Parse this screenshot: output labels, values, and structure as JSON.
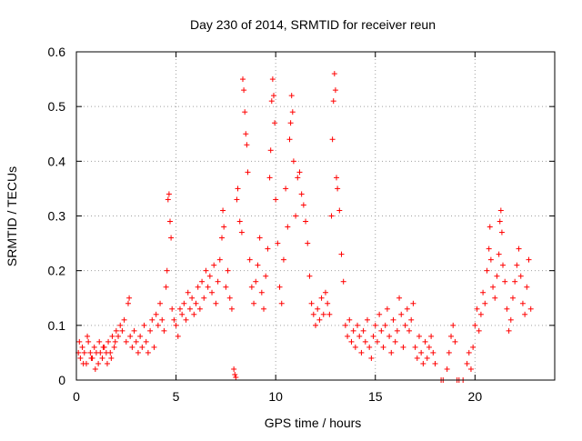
{
  "chart_data": {
    "type": "scatter",
    "title": "Day 230 of 2014, SRMTID for receiver reun",
    "xlabel": "GPS time / hours",
    "ylabel": "SRMTID / TECUs",
    "xlim": [
      0,
      24
    ],
    "ylim": [
      0,
      0.6
    ],
    "xticks": [
      0,
      5,
      10,
      15,
      20
    ],
    "xtick_labels": [
      "0",
      "5",
      "10",
      "15",
      "20"
    ],
    "yticks": [
      0,
      0.1,
      0.2,
      0.3,
      0.4,
      0.5,
      0.6
    ],
    "ytick_labels": [
      "0",
      "0.1",
      "0.2",
      "0.3",
      "0.4",
      "0.5",
      "0.6"
    ],
    "grid": true,
    "marker": "+",
    "color": "#ff0000",
    "series": [
      {
        "name": "SRMTID",
        "points": [
          [
            0.1,
            0.05
          ],
          [
            0.2,
            0.04
          ],
          [
            0.3,
            0.06
          ],
          [
            0.4,
            0.05
          ],
          [
            0.5,
            0.03
          ],
          [
            0.6,
            0.07
          ],
          [
            0.7,
            0.05
          ],
          [
            0.8,
            0.04
          ],
          [
            0.9,
            0.06
          ],
          [
            1.0,
            0.05
          ],
          [
            1.1,
            0.03
          ],
          [
            1.2,
            0.05
          ],
          [
            1.3,
            0.04
          ],
          [
            1.4,
            0.06
          ],
          [
            1.5,
            0.05
          ],
          [
            1.6,
            0.07
          ],
          [
            1.7,
            0.05
          ],
          [
            1.8,
            0.08
          ],
          [
            1.9,
            0.06
          ],
          [
            2.0,
            0.09
          ],
          [
            0.15,
            0.07
          ],
          [
            0.35,
            0.03
          ],
          [
            0.55,
            0.08
          ],
          [
            0.75,
            0.04
          ],
          [
            0.95,
            0.02
          ],
          [
            1.15,
            0.07
          ],
          [
            1.35,
            0.06
          ],
          [
            1.55,
            0.03
          ],
          [
            1.75,
            0.04
          ],
          [
            1.95,
            0.07
          ],
          [
            2.1,
            0.08
          ],
          [
            2.2,
            0.1
          ],
          [
            2.3,
            0.09
          ],
          [
            2.4,
            0.11
          ],
          [
            2.5,
            0.07
          ],
          [
            2.6,
            0.14
          ],
          [
            2.65,
            0.15
          ],
          [
            2.7,
            0.08
          ],
          [
            2.8,
            0.06
          ],
          [
            2.9,
            0.09
          ],
          [
            3.0,
            0.07
          ],
          [
            3.1,
            0.05
          ],
          [
            3.2,
            0.08
          ],
          [
            3.3,
            0.06
          ],
          [
            3.4,
            0.1
          ],
          [
            3.5,
            0.07
          ],
          [
            3.6,
            0.05
          ],
          [
            3.7,
            0.09
          ],
          [
            3.8,
            0.11
          ],
          [
            3.9,
            0.06
          ],
          [
            4.0,
            0.12
          ],
          [
            4.1,
            0.1
          ],
          [
            4.2,
            0.14
          ],
          [
            4.3,
            0.11
          ],
          [
            4.4,
            0.09
          ],
          [
            4.5,
            0.17
          ],
          [
            4.55,
            0.2
          ],
          [
            4.6,
            0.33
          ],
          [
            4.65,
            0.34
          ],
          [
            4.7,
            0.29
          ],
          [
            4.75,
            0.26
          ],
          [
            4.8,
            0.13
          ],
          [
            4.9,
            0.11
          ],
          [
            5.0,
            0.1
          ],
          [
            5.1,
            0.08
          ],
          [
            5.2,
            0.13
          ],
          [
            5.3,
            0.12
          ],
          [
            5.4,
            0.14
          ],
          [
            5.5,
            0.11
          ],
          [
            5.6,
            0.16
          ],
          [
            5.7,
            0.13
          ],
          [
            5.8,
            0.15
          ],
          [
            5.9,
            0.12
          ],
          [
            6.0,
            0.14
          ],
          [
            6.1,
            0.17
          ],
          [
            6.2,
            0.13
          ],
          [
            6.3,
            0.18
          ],
          [
            6.4,
            0.15
          ],
          [
            6.5,
            0.2
          ],
          [
            6.6,
            0.17
          ],
          [
            6.7,
            0.19
          ],
          [
            6.8,
            0.16
          ],
          [
            6.9,
            0.21
          ],
          [
            7.0,
            0.14
          ],
          [
            7.1,
            0.18
          ],
          [
            7.2,
            0.22
          ],
          [
            7.3,
            0.26
          ],
          [
            7.35,
            0.31
          ],
          [
            7.4,
            0.28
          ],
          [
            7.5,
            0.17
          ],
          [
            7.6,
            0.2
          ],
          [
            7.7,
            0.15
          ],
          [
            7.8,
            0.13
          ],
          [
            7.9,
            0.02
          ],
          [
            7.95,
            0.01
          ],
          [
            8.0,
            0.005
          ],
          [
            8.05,
            0.33
          ],
          [
            8.1,
            0.35
          ],
          [
            8.2,
            0.29
          ],
          [
            8.3,
            0.27
          ],
          [
            8.35,
            0.55
          ],
          [
            8.4,
            0.53
          ],
          [
            8.45,
            0.49
          ],
          [
            8.5,
            0.45
          ],
          [
            8.55,
            0.43
          ],
          [
            8.6,
            0.38
          ],
          [
            8.7,
            0.22
          ],
          [
            8.8,
            0.17
          ],
          [
            8.9,
            0.14
          ],
          [
            9.0,
            0.18
          ],
          [
            9.1,
            0.21
          ],
          [
            9.2,
            0.26
          ],
          [
            9.3,
            0.16
          ],
          [
            9.4,
            0.13
          ],
          [
            9.5,
            0.19
          ],
          [
            9.6,
            0.24
          ],
          [
            9.7,
            0.37
          ],
          [
            9.75,
            0.42
          ],
          [
            9.8,
            0.51
          ],
          [
            9.85,
            0.55
          ],
          [
            9.9,
            0.52
          ],
          [
            9.95,
            0.47
          ],
          [
            10.0,
            0.33
          ],
          [
            10.1,
            0.25
          ],
          [
            10.2,
            0.17
          ],
          [
            10.3,
            0.14
          ],
          [
            10.4,
            0.22
          ],
          [
            10.5,
            0.35
          ],
          [
            10.6,
            0.28
          ],
          [
            10.7,
            0.44
          ],
          [
            10.75,
            0.47
          ],
          [
            10.8,
            0.52
          ],
          [
            10.85,
            0.49
          ],
          [
            10.9,
            0.4
          ],
          [
            11.0,
            0.3
          ],
          [
            11.1,
            0.37
          ],
          [
            11.2,
            0.38
          ],
          [
            11.3,
            0.34
          ],
          [
            11.4,
            0.32
          ],
          [
            11.5,
            0.29
          ],
          [
            11.6,
            0.25
          ],
          [
            11.7,
            0.19
          ],
          [
            11.8,
            0.14
          ],
          [
            11.9,
            0.12
          ],
          [
            12.0,
            0.1
          ],
          [
            12.1,
            0.13
          ],
          [
            12.2,
            0.11
          ],
          [
            12.3,
            0.15
          ],
          [
            12.4,
            0.12
          ],
          [
            12.5,
            0.16
          ],
          [
            12.6,
            0.14
          ],
          [
            12.7,
            0.12
          ],
          [
            12.8,
            0.3
          ],
          [
            12.85,
            0.44
          ],
          [
            12.9,
            0.51
          ],
          [
            12.95,
            0.56
          ],
          [
            13.0,
            0.53
          ],
          [
            13.05,
            0.37
          ],
          [
            13.1,
            0.35
          ],
          [
            13.2,
            0.31
          ],
          [
            13.3,
            0.23
          ],
          [
            13.4,
            0.18
          ],
          [
            13.5,
            0.1
          ],
          [
            13.6,
            0.08
          ],
          [
            13.7,
            0.11
          ],
          [
            13.8,
            0.07
          ],
          [
            13.9,
            0.09
          ],
          [
            14.0,
            0.06
          ],
          [
            14.1,
            0.1
          ],
          [
            14.2,
            0.08
          ],
          [
            14.3,
            0.05
          ],
          [
            14.4,
            0.09
          ],
          [
            14.5,
            0.07
          ],
          [
            14.6,
            0.11
          ],
          [
            14.7,
            0.06
          ],
          [
            14.8,
            0.04
          ],
          [
            14.9,
            0.08
          ],
          [
            15.0,
            0.1
          ],
          [
            15.1,
            0.07
          ],
          [
            15.2,
            0.12
          ],
          [
            15.3,
            0.09
          ],
          [
            15.4,
            0.06
          ],
          [
            15.5,
            0.1
          ],
          [
            15.6,
            0.13
          ],
          [
            15.7,
            0.08
          ],
          [
            15.8,
            0.05
          ],
          [
            15.9,
            0.11
          ],
          [
            16.0,
            0.07
          ],
          [
            16.1,
            0.09
          ],
          [
            16.2,
            0.15
          ],
          [
            16.3,
            0.12
          ],
          [
            16.4,
            0.06
          ],
          [
            16.5,
            0.1
          ],
          [
            16.6,
            0.13
          ],
          [
            16.7,
            0.09
          ],
          [
            16.8,
            0.11
          ],
          [
            16.9,
            0.14
          ],
          [
            17.0,
            0.06
          ],
          [
            17.1,
            0.04
          ],
          [
            17.2,
            0.08
          ],
          [
            17.3,
            0.05
          ],
          [
            17.4,
            0.03
          ],
          [
            17.5,
            0.07
          ],
          [
            17.6,
            0.04
          ],
          [
            17.7,
            0.06
          ],
          [
            17.8,
            0.08
          ],
          [
            17.9,
            0.05
          ],
          [
            18.0,
            0.03
          ],
          [
            18.3,
            0.0
          ],
          [
            18.4,
            0.0
          ],
          [
            18.6,
            0.02
          ],
          [
            18.7,
            0.05
          ],
          [
            18.8,
            0.08
          ],
          [
            18.9,
            0.1
          ],
          [
            19.0,
            0.07
          ],
          [
            19.1,
            0.0
          ],
          [
            19.2,
            0.0
          ],
          [
            19.4,
            0.0
          ],
          [
            19.6,
            0.03
          ],
          [
            19.7,
            0.05
          ],
          [
            19.8,
            0.02
          ],
          [
            19.9,
            0.06
          ],
          [
            20.0,
            0.1
          ],
          [
            20.1,
            0.13
          ],
          [
            20.2,
            0.09
          ],
          [
            20.3,
            0.12
          ],
          [
            20.4,
            0.16
          ],
          [
            20.5,
            0.14
          ],
          [
            20.6,
            0.2
          ],
          [
            20.7,
            0.24
          ],
          [
            20.75,
            0.28
          ],
          [
            20.8,
            0.22
          ],
          [
            20.9,
            0.17
          ],
          [
            21.0,
            0.15
          ],
          [
            21.1,
            0.19
          ],
          [
            21.2,
            0.23
          ],
          [
            21.25,
            0.29
          ],
          [
            21.3,
            0.31
          ],
          [
            21.35,
            0.27
          ],
          [
            21.4,
            0.21
          ],
          [
            21.5,
            0.18
          ],
          [
            21.6,
            0.13
          ],
          [
            21.7,
            0.09
          ],
          [
            21.8,
            0.11
          ],
          [
            21.9,
            0.15
          ],
          [
            22.0,
            0.18
          ],
          [
            22.1,
            0.21
          ],
          [
            22.2,
            0.24
          ],
          [
            22.3,
            0.19
          ],
          [
            22.4,
            0.14
          ],
          [
            22.5,
            0.12
          ],
          [
            22.6,
            0.17
          ],
          [
            22.7,
            0.22
          ],
          [
            22.8,
            0.13
          ]
        ]
      }
    ]
  }
}
